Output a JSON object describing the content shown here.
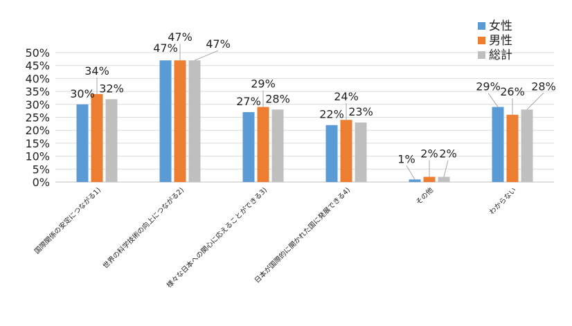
{
  "chart_data": {
    "type": "bar",
    "categories": [
      "国際関係の安定につながる1)",
      "世界の科学技術の向上につながる2)",
      "様々な日本への関心に応えることができる3)",
      "日本が国際的に開かれた国に発展できる4)",
      "その他",
      "わからない"
    ],
    "series": [
      {
        "name": "女性",
        "color": "#5b9bd5",
        "values": [
          30,
          47,
          27,
          22,
          1,
          29
        ],
        "labels": [
          "30%",
          "47%",
          "27%",
          "22%",
          "1%",
          "29%"
        ]
      },
      {
        "name": "男性",
        "color": "#ed7d31",
        "values": [
          34,
          47,
          29,
          24,
          2,
          26
        ],
        "labels": [
          "34%",
          "47%",
          "29%",
          "24%",
          "2%",
          "26%"
        ]
      },
      {
        "name": "総計",
        "color": "#bfbfbf",
        "values": [
          32,
          47,
          28,
          23,
          2,
          28
        ],
        "labels": [
          "32%",
          "47%",
          "28%",
          "23%",
          "2%",
          "28%"
        ]
      }
    ],
    "y_ticks": [
      "0%",
      "5%",
      "10%",
      "15%",
      "20%",
      "25%",
      "30%",
      "35%",
      "40%",
      "45%",
      "50%"
    ],
    "ylim": [
      0,
      50
    ],
    "grid": true,
    "legend_position": "top-right"
  }
}
